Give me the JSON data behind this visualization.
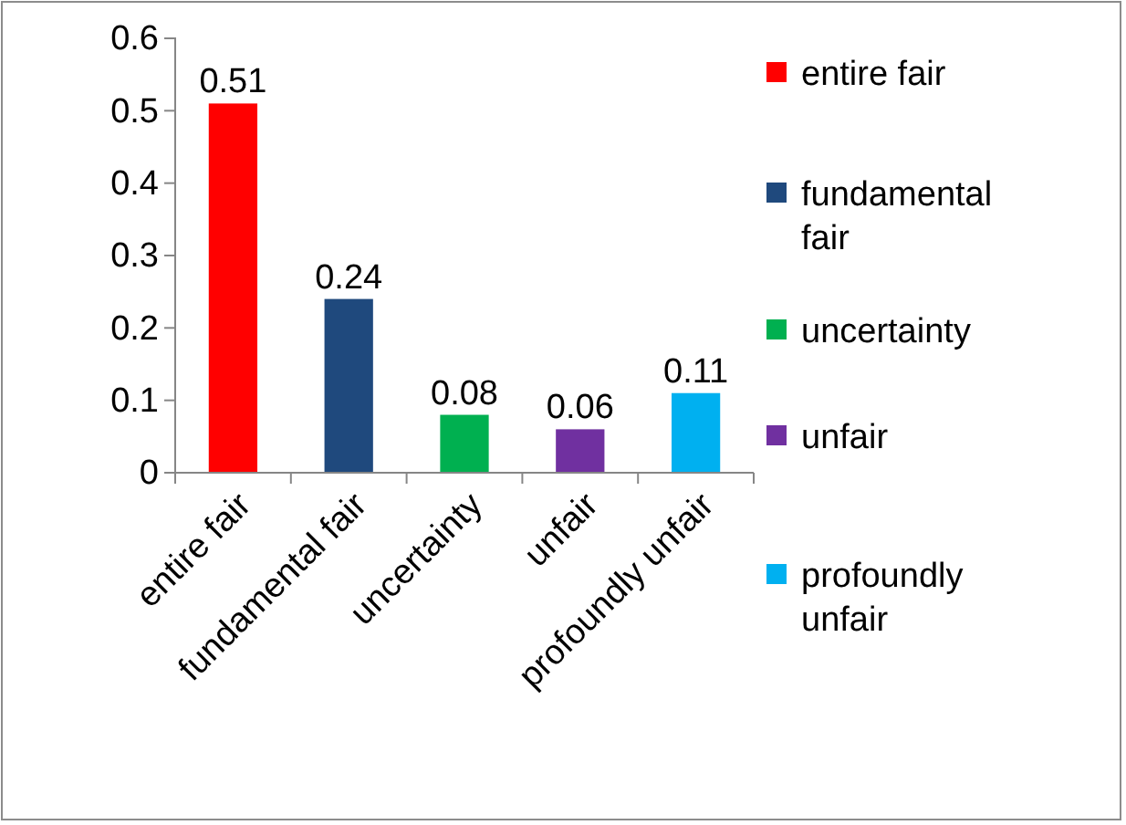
{
  "chart_data": {
    "type": "bar",
    "categories": [
      "entire fair",
      "fundamental fair",
      "uncertainty",
      "unfair",
      "profoundly unfair"
    ],
    "series": [
      {
        "name": "entire fair",
        "color": "#ff0000",
        "values": [
          0.51,
          null,
          null,
          null,
          null
        ]
      },
      {
        "name": "fundamental fair",
        "color": "#1f497d",
        "values": [
          null,
          0.24,
          null,
          null,
          null
        ]
      },
      {
        "name": "uncertainty",
        "color": "#00b050",
        "values": [
          null,
          null,
          0.08,
          null,
          null
        ]
      },
      {
        "name": "unfair",
        "color": "#7030a0",
        "values": [
          null,
          null,
          null,
          0.06,
          null
        ]
      },
      {
        "name": "profoundly unfair",
        "color": "#00b0f0",
        "values": [
          null,
          null,
          null,
          null,
          0.11
        ]
      }
    ],
    "ylim": [
      0,
      0.6
    ],
    "yticks": [
      0,
      0.1,
      0.2,
      0.3,
      0.4,
      0.5,
      0.6
    ],
    "data_labels": true,
    "legend": "right"
  }
}
